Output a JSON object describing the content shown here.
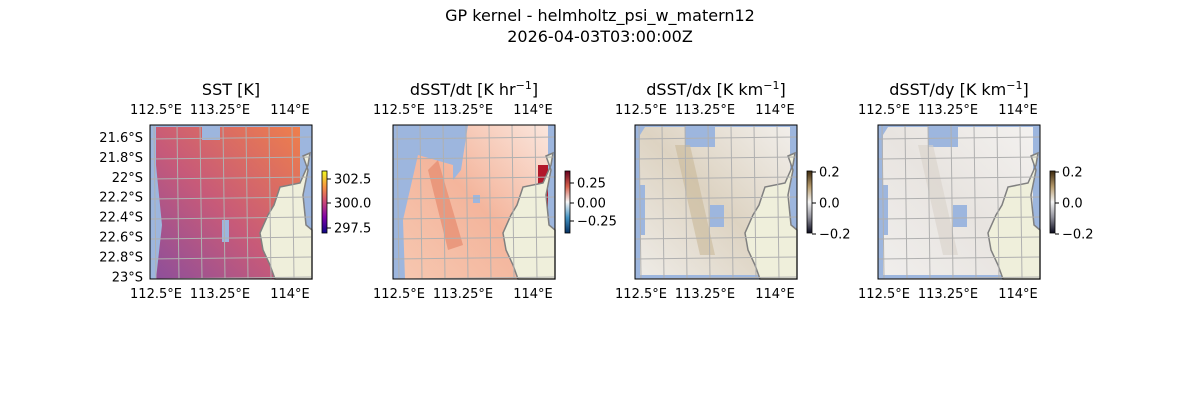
{
  "figure": {
    "title": "GP kernel - helmholtz_psi_w_matern12",
    "subtitle": "2026-04-03T03:00:00Z"
  },
  "colors": {
    "water": "#9db6de",
    "land": "#efefdb",
    "coast": "#808080",
    "grid": "#b0b0b0"
  },
  "chart_data": [
    {
      "type": "heatmap",
      "title": "SST [K]",
      "colormap": "plasma-like (navy-purple-orange-yellow)",
      "lon_ticks": [
        "112.5°E",
        "113.25°E",
        "114°E"
      ],
      "lat_ticks": [
        "21.6°S",
        "21.8°S",
        "22°S",
        "22.2°S",
        "22.4°S",
        "22.6°S",
        "22.8°S",
        "23°S"
      ],
      "colorbar": {
        "ticks": [
          "302.5",
          "300.0",
          "297.5"
        ],
        "range": [
          297,
          303
        ]
      },
      "lat_labels_shown": true
    },
    {
      "type": "heatmap",
      "title": "dSST/dt [K hr",
      "title_sup": "−1",
      "title_end": "]",
      "colormap": "RdBu_r",
      "lon_ticks": [
        "112.5°E",
        "113.25°E",
        "114°E"
      ],
      "colorbar": {
        "ticks": [
          "0.25",
          "0.00",
          "−0.25"
        ],
        "range": [
          -0.4,
          0.4
        ]
      },
      "lat_labels_shown": false
    },
    {
      "type": "heatmap",
      "title": "dSST/dx [K km",
      "title_sup": "−1",
      "title_end": "]",
      "colormap": "diverging gray-white-brown",
      "lon_ticks": [
        "112.5°E",
        "113.25°E",
        "114°E"
      ],
      "colorbar": {
        "ticks": [
          "0.2",
          "0.0",
          "−0.2"
        ],
        "range": [
          -0.2,
          0.2
        ]
      },
      "lat_labels_shown": false
    },
    {
      "type": "heatmap",
      "title": "dSST/dy [K km",
      "title_sup": "−1",
      "title_end": "]",
      "colormap": "diverging gray-white-brown",
      "lon_ticks": [
        "112.5°E",
        "113.25°E",
        "114°E"
      ],
      "colorbar": {
        "ticks": [
          "0.2",
          "0.0",
          "−0.2"
        ],
        "range": [
          -0.2,
          0.2
        ]
      },
      "lat_labels_shown": false
    }
  ]
}
